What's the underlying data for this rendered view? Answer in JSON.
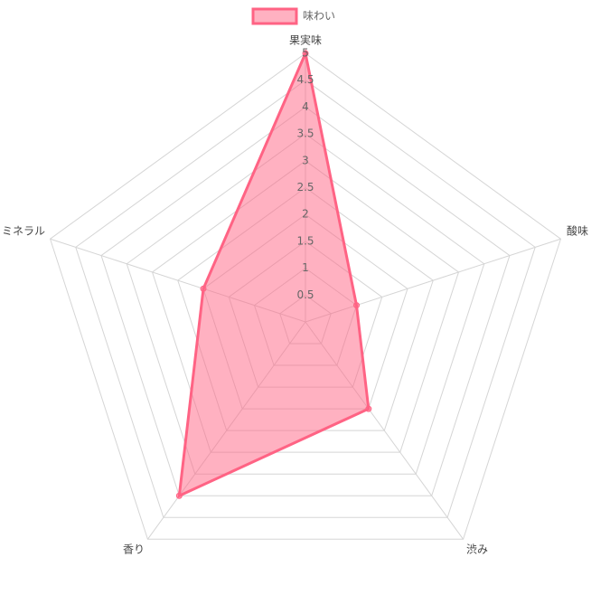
{
  "chart_data": {
    "type": "radar",
    "categories": [
      "果実味",
      "酸味",
      "渋み",
      "香り",
      "ミネラル"
    ],
    "series": [
      {
        "name": "味わい",
        "color": "#ff6384",
        "values": [
          5,
          1,
          2,
          4,
          2
        ]
      }
    ],
    "rlim": [
      0,
      5
    ],
    "rticks": [
      0.5,
      1,
      1.5,
      2,
      2.5,
      3,
      3.5,
      4,
      4.5,
      5
    ],
    "grid": true,
    "legend": "top"
  }
}
